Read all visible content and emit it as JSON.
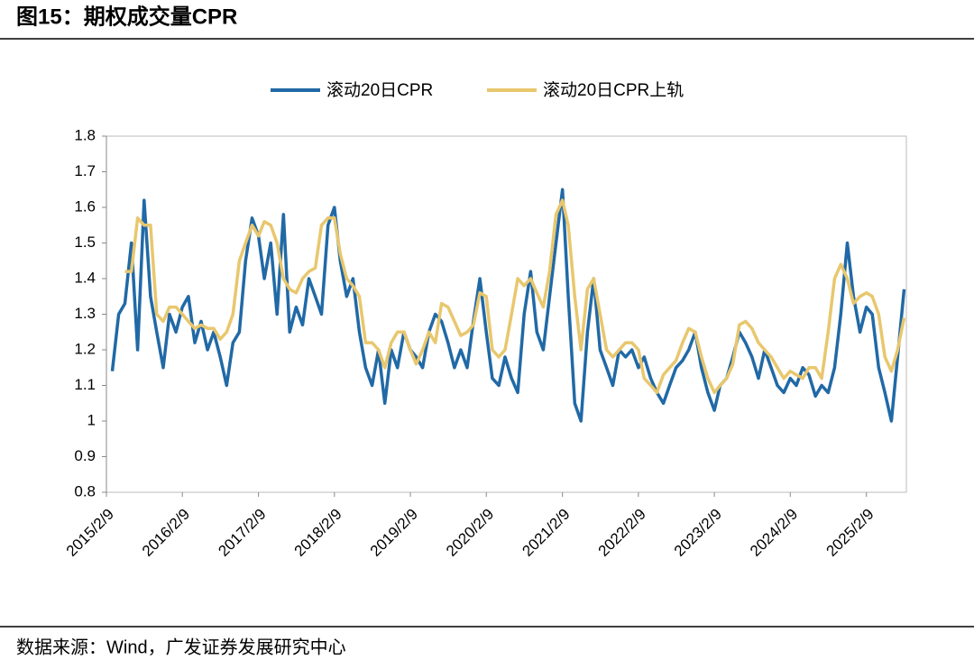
{
  "header": {
    "title": "图15：期权成交量CPR"
  },
  "chart_data": {
    "type": "line",
    "x": [
      "2015/3/9",
      "2015/4/9",
      "2015/5/9",
      "2015/6/9",
      "2015/7/9",
      "2015/8/9",
      "2015/9/9",
      "2015/10/9",
      "2015/11/9",
      "2015/12/9",
      "2016/1/9",
      "2016/2/9",
      "2016/3/9",
      "2016/4/9",
      "2016/5/9",
      "2016/6/9",
      "2016/7/9",
      "2016/8/9",
      "2016/9/9",
      "2016/10/9",
      "2016/11/9",
      "2016/12/9",
      "2017/1/9",
      "2017/2/9",
      "2017/3/9",
      "2017/4/9",
      "2017/5/9",
      "2017/6/9",
      "2017/7/9",
      "2017/8/9",
      "2017/9/9",
      "2017/10/9",
      "2017/11/9",
      "2017/12/9",
      "2018/1/9",
      "2018/2/9",
      "2018/3/9",
      "2018/4/9",
      "2018/5/9",
      "2018/6/9",
      "2018/7/9",
      "2018/8/9",
      "2018/9/9",
      "2018/10/9",
      "2018/11/9",
      "2018/12/9",
      "2019/1/9",
      "2019/2/9",
      "2019/3/9",
      "2019/4/9",
      "2019/5/9",
      "2019/6/9",
      "2019/7/9",
      "2019/8/9",
      "2019/9/9",
      "2019/10/9",
      "2019/11/9",
      "2019/12/9",
      "2020/1/9",
      "2020/2/9",
      "2020/3/9",
      "2020/4/9",
      "2020/5/9",
      "2020/6/9",
      "2020/7/9",
      "2020/8/9",
      "2020/9/9",
      "2020/10/9",
      "2020/11/9",
      "2020/12/9",
      "2021/1/9",
      "2021/2/9",
      "2021/3/9",
      "2021/4/9",
      "2021/5/9",
      "2021/6/9",
      "2021/7/9",
      "2021/8/9",
      "2021/9/9",
      "2021/10/9",
      "2021/11/9",
      "2021/12/9",
      "2022/1/9",
      "2022/2/9",
      "2022/3/9",
      "2022/4/9",
      "2022/5/9",
      "2022/6/9",
      "2022/7/9",
      "2022/8/9",
      "2022/9/9",
      "2022/10/9",
      "2022/11/9",
      "2022/12/9",
      "2023/1/9",
      "2023/2/9",
      "2023/3/9",
      "2023/4/9",
      "2023/5/9",
      "2023/6/9",
      "2023/7/9",
      "2023/8/9",
      "2023/9/9",
      "2023/10/9",
      "2023/11/9",
      "2023/12/9",
      "2024/1/9",
      "2024/2/9",
      "2024/3/9",
      "2024/4/9",
      "2024/5/9",
      "2024/6/9",
      "2024/7/9",
      "2024/8/9",
      "2024/9/9",
      "2024/10/9",
      "2024/11/9",
      "2024/12/9",
      "2025/1/9",
      "2025/2/9",
      "2025/3/9",
      "2025/4/9",
      "2025/5/9",
      "2025/6/9",
      "2025/7/9",
      "2025/8/9"
    ],
    "series": [
      {
        "name": "滚动20日CPR",
        "color": "#2169a6",
        "values": [
          1.14,
          1.3,
          1.33,
          1.5,
          1.2,
          1.62,
          1.35,
          1.25,
          1.15,
          1.3,
          1.25,
          1.32,
          1.35,
          1.22,
          1.28,
          1.2,
          1.25,
          1.18,
          1.1,
          1.22,
          1.25,
          1.45,
          1.57,
          1.52,
          1.4,
          1.5,
          1.3,
          1.58,
          1.25,
          1.32,
          1.27,
          1.4,
          1.35,
          1.3,
          1.55,
          1.6,
          1.45,
          1.35,
          1.4,
          1.25,
          1.15,
          1.1,
          1.2,
          1.05,
          1.2,
          1.15,
          1.25,
          1.2,
          1.18,
          1.15,
          1.25,
          1.3,
          1.28,
          1.22,
          1.15,
          1.2,
          1.15,
          1.28,
          1.4,
          1.25,
          1.12,
          1.1,
          1.18,
          1.12,
          1.08,
          1.3,
          1.42,
          1.25,
          1.2,
          1.35,
          1.5,
          1.65,
          1.35,
          1.05,
          1.0,
          1.25,
          1.4,
          1.2,
          1.15,
          1.1,
          1.2,
          1.18,
          1.2,
          1.15,
          1.18,
          1.12,
          1.08,
          1.05,
          1.1,
          1.15,
          1.17,
          1.2,
          1.25,
          1.15,
          1.08,
          1.03,
          1.1,
          1.12,
          1.18,
          1.25,
          1.22,
          1.18,
          1.12,
          1.2,
          1.15,
          1.1,
          1.08,
          1.12,
          1.1,
          1.15,
          1.13,
          1.07,
          1.1,
          1.08,
          1.15,
          1.3,
          1.5,
          1.35,
          1.25,
          1.32,
          1.3,
          1.15,
          1.08,
          1.0,
          1.18,
          1.37
        ]
      },
      {
        "name": "滚动20日CPR上轨",
        "color": "#e8c76e",
        "values": [
          null,
          null,
          1.42,
          1.42,
          1.57,
          1.55,
          1.55,
          1.3,
          1.28,
          1.32,
          1.32,
          1.3,
          1.28,
          1.26,
          1.27,
          1.26,
          1.26,
          1.23,
          1.25,
          1.3,
          1.45,
          1.5,
          1.55,
          1.52,
          1.56,
          1.55,
          1.5,
          1.4,
          1.37,
          1.36,
          1.4,
          1.42,
          1.43,
          1.55,
          1.57,
          1.57,
          1.47,
          1.4,
          1.38,
          1.35,
          1.22,
          1.22,
          1.2,
          1.15,
          1.22,
          1.25,
          1.25,
          1.2,
          1.16,
          1.2,
          1.25,
          1.22,
          1.33,
          1.32,
          1.28,
          1.24,
          1.25,
          1.27,
          1.36,
          1.35,
          1.2,
          1.18,
          1.2,
          1.3,
          1.4,
          1.38,
          1.4,
          1.36,
          1.32,
          1.42,
          1.58,
          1.62,
          1.55,
          1.35,
          1.2,
          1.37,
          1.4,
          1.3,
          1.2,
          1.18,
          1.2,
          1.22,
          1.22,
          1.2,
          1.12,
          1.1,
          1.08,
          1.13,
          1.15,
          1.17,
          1.22,
          1.26,
          1.25,
          1.18,
          1.12,
          1.08,
          1.1,
          1.12,
          1.16,
          1.27,
          1.28,
          1.26,
          1.22,
          1.2,
          1.18,
          1.15,
          1.12,
          1.14,
          1.13,
          1.12,
          1.15,
          1.15,
          1.12,
          1.25,
          1.4,
          1.44,
          1.4,
          1.33,
          1.35,
          1.36,
          1.35,
          1.3,
          1.18,
          1.14,
          1.2,
          1.29
        ]
      }
    ],
    "xlim": [
      "2015/2/9",
      "2025/8/20"
    ],
    "xticks": [
      "2015/2/9",
      "2016/2/9",
      "2017/2/9",
      "2018/2/9",
      "2019/2/9",
      "2020/2/9",
      "2021/2/9",
      "2022/2/9",
      "2023/2/9",
      "2024/2/9",
      "2025/2/9"
    ],
    "ylim": [
      0.8,
      1.8
    ],
    "yticks": [
      0.8,
      0.9,
      1,
      1.1,
      1.2,
      1.3,
      1.4,
      1.5,
      1.6,
      1.7,
      1.8
    ],
    "grid": false,
    "legend": "top"
  },
  "footer": {
    "source": "数据来源：Wind，广发证券发展研究中心"
  }
}
